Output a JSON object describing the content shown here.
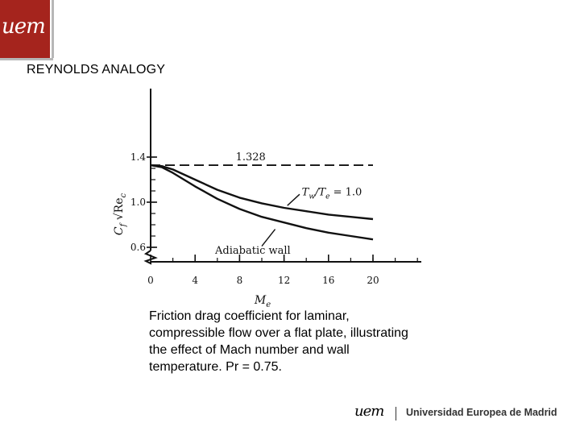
{
  "header": {
    "logo_text": "uem",
    "title": "REYNOLDS ANALOGY"
  },
  "chart_data": {
    "type": "line",
    "xlabel": "M_e",
    "ylabel": "C_f √Re_c",
    "x_ticks": [
      0,
      4,
      8,
      12,
      16,
      20
    ],
    "y_ticks": [
      0.6,
      1.0,
      1.4
    ],
    "xlim": [
      0,
      20
    ],
    "ylim": [
      0.6,
      1.4
    ],
    "series": [
      {
        "name": "1.328",
        "style": "dashed",
        "x": [
          0,
          20
        ],
        "y": [
          1.328,
          1.328
        ]
      },
      {
        "name": "T_w/T_e = 1.0",
        "style": "solid",
        "x": [
          0,
          1,
          2,
          4,
          6,
          8,
          10,
          12,
          14,
          16,
          18,
          20
        ],
        "y": [
          1.328,
          1.32,
          1.29,
          1.2,
          1.11,
          1.04,
          0.99,
          0.95,
          0.92,
          0.89,
          0.87,
          0.85
        ]
      },
      {
        "name": "Adiabatic wall",
        "style": "solid",
        "x": [
          0,
          1,
          2,
          4,
          6,
          8,
          10,
          12,
          14,
          16,
          18,
          20
        ],
        "y": [
          1.328,
          1.31,
          1.26,
          1.14,
          1.03,
          0.94,
          0.87,
          0.82,
          0.77,
          0.73,
          0.7,
          0.67
        ]
      }
    ],
    "annotations": {
      "dashed_label": "1.328",
      "upper_curve_label": "T_w/T_e = 1.0",
      "lower_curve_label": "Adiabatic wall"
    }
  },
  "caption": "Friction drag coefficient for laminar, compressible flow over a flat plate, illustrating the effect of Mach number and wall temperature. Pr = 0.75.",
  "footer": {
    "logo_mark": "uem",
    "university_name": "Universidad Europea de Madrid"
  }
}
